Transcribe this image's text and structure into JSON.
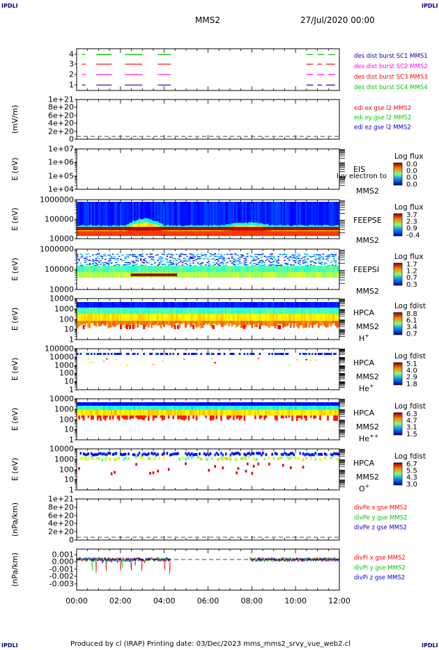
{
  "corners": {
    "tl": "IPDLI",
    "tr": "IPDLI",
    "bl": "IPDLI",
    "br": "IPDLI"
  },
  "header": {
    "spacecraft": "MMS2",
    "date": "27/Jul/2020 00:00"
  },
  "footer": {
    "text": "Produced by cl (IRAP)   Printing date: 03/Dec/2023   mms_mms2_srvy_vue_web2.cl"
  },
  "colors": {
    "c1": "#0000c8",
    "c2": "#ff0000",
    "c3": "#ff00ff",
    "c4": "#00c800",
    "axis": "#000000"
  },
  "time_axis": {
    "ticks": [
      "00:00",
      "02:00",
      "04:00",
      "06:00",
      "08:00",
      "10:00",
      "12:00"
    ],
    "range_hours": [
      0,
      12
    ]
  },
  "chart_data": [
    {
      "type": "line",
      "id": "p1",
      "title": "",
      "yticks": [
        "4",
        "3",
        "2",
        "1"
      ],
      "legend": [
        {
          "text": "des dist burst SC1 MMS1",
          "color": "#0000c8"
        },
        {
          "text": "des dist burst SC2 MMS2",
          "color": "#ff00ff"
        },
        {
          "text": "des dist burst SC3 MMS3",
          "color": "#ff0000"
        },
        {
          "text": "des dist burst SC4 MMS4",
          "color": "#00c800"
        }
      ],
      "series": [
        {
          "level": 4,
          "color": "#00c800",
          "intervals_h": [
            [
              0.25,
              0.4
            ],
            [
              0.9,
              1.6
            ],
            [
              2.2,
              3.0
            ],
            [
              3.7,
              4.3
            ],
            [
              10.5,
              10.8
            ],
            [
              11.0,
              11.3
            ],
            [
              11.5,
              11.8
            ]
          ]
        },
        {
          "level": 3,
          "color": "#ff0000",
          "intervals_h": [
            [
              0.25,
              0.4
            ],
            [
              0.9,
              1.6
            ],
            [
              2.2,
              3.0
            ],
            [
              3.7,
              4.3
            ],
            [
              10.5,
              10.8
            ],
            [
              11.0,
              11.2
            ],
            [
              11.4,
              11.8
            ]
          ]
        },
        {
          "level": 2,
          "color": "#ff00ff",
          "intervals_h": [
            [
              0.25,
              0.4
            ],
            [
              0.9,
              1.6
            ],
            [
              2.2,
              3.0
            ],
            [
              3.7,
              4.3
            ],
            [
              10.5,
              10.8
            ],
            [
              11.0,
              11.3
            ],
            [
              11.5,
              11.8
            ]
          ]
        },
        {
          "level": 1,
          "color": "#0000c8",
          "intervals_h": [
            [
              0.25,
              0.4
            ],
            [
              0.9,
              1.6
            ],
            [
              2.2,
              3.0
            ],
            [
              3.7,
              4.3
            ],
            [
              10.5,
              10.8
            ],
            [
              11.0,
              11.2
            ],
            [
              11.4,
              11.8
            ]
          ]
        }
      ]
    },
    {
      "type": "line",
      "id": "p2",
      "ylabel": "(mV/m)",
      "yticks": [
        "1e+21",
        "8e+20",
        "6e+20",
        "4e+20",
        "2e+20",
        "0"
      ],
      "legend": [
        {
          "text": "edi ex gse l2 MMS2",
          "color": "#ff0000"
        },
        {
          "text": "edi ey gse l2 MMS2",
          "color": "#00c800"
        },
        {
          "text": "edi ez gse l2 MMS2",
          "color": "#0000c8"
        }
      ],
      "zero_line": true
    },
    {
      "type": "heatmap",
      "id": "p3",
      "ylabel": "E (eV)",
      "yticks": [
        "1e+07",
        "1e+06",
        "1e+05",
        "1e+04"
      ],
      "label": "EIS",
      "label2": "MMS2",
      "overlay": "Ivy electron to",
      "cbar_title": "Log flux",
      "cbar_ticks": [
        "0.0",
        "0.0",
        "0.0",
        "0.0"
      ],
      "empty": true
    },
    {
      "type": "heatmap",
      "id": "p4",
      "ylabel": "E (eV)",
      "yticks": [
        "1000000",
        "100000",
        "10000"
      ],
      "label": "FEEPSE",
      "label2": "MMS2",
      "cbar_title": "Log flux",
      "cbar_ticks": [
        "3.7",
        "2.3",
        "0.9",
        "-0.4"
      ]
    },
    {
      "type": "heatmap",
      "id": "p5",
      "ylabel": "E (eV)",
      "yticks": [
        "1000000",
        "100000",
        "10000"
      ],
      "label": "FEEPSI",
      "label2": "MMS2",
      "cbar_title": "Log flux",
      "cbar_ticks": [
        "1.7",
        "1.2",
        "0.7",
        "0.3"
      ]
    },
    {
      "type": "heatmap",
      "id": "p6",
      "ylabel": "E (eV)",
      "yticks": [
        "10000",
        "1000",
        "100",
        "10",
        "1"
      ],
      "label": "HPCA",
      "label2": "MMS2",
      "species": "H",
      "sup": "+",
      "cbar_title": "Log fdist",
      "cbar_ticks": [
        "8.8",
        "6.1",
        "3.4",
        "0.7"
      ]
    },
    {
      "type": "heatmap",
      "id": "p7",
      "ylabel": "E (eV)",
      "yticks": [
        "100000",
        "10000",
        "1000",
        "100",
        "10",
        "1"
      ],
      "label": "HPCA",
      "label2": "MMS2",
      "species": "He",
      "sup": "+",
      "cbar_title": "Log fdist",
      "cbar_ticks": [
        "5.1",
        "4.0",
        "2.9",
        "1.8"
      ]
    },
    {
      "type": "heatmap",
      "id": "p8",
      "ylabel": "E (eV)",
      "yticks": [
        "10000",
        "1000",
        "100",
        "10",
        "1"
      ],
      "label": "HPCA",
      "label2": "MMS2",
      "species": "He",
      "sup": "++",
      "cbar_title": "Log fdist",
      "cbar_ticks": [
        "6.3",
        "4.7",
        "3.1",
        "1.5"
      ]
    },
    {
      "type": "heatmap",
      "id": "p9",
      "ylabel": "E (eV)",
      "yticks": [
        "10000",
        "1000",
        "100",
        "10",
        "1"
      ],
      "label": "HPCA",
      "label2": "MMS2",
      "species": "O",
      "sup": "+",
      "cbar_title": "Log fdist",
      "cbar_ticks": [
        "6.7",
        "5.5",
        "4.3",
        "3.0"
      ]
    },
    {
      "type": "line",
      "id": "p10",
      "ylabel": "(nPa/km)",
      "yticks": [
        "1e+21",
        "8e+20",
        "6e+20",
        "4e+20",
        "2e+20",
        "0"
      ],
      "legend": [
        {
          "text": "divPe x gse MMS2",
          "color": "#ff0000"
        },
        {
          "text": "divPe y gse MMS2",
          "color": "#00c800"
        },
        {
          "text": "divPe z gse MMS2",
          "color": "#0000c8"
        }
      ],
      "zero_line": true
    },
    {
      "type": "line",
      "id": "p11",
      "ylabel": "(nPa/km)",
      "yticks": [
        "0.001",
        "0.000",
        "-0.001",
        "-0.002",
        "-0.003"
      ],
      "legend": [
        {
          "text": "divPi x gse MMS2",
          "color": "#ff0000"
        },
        {
          "text": "divPi y gse MMS2",
          "color": "#00c800"
        },
        {
          "text": "divPi z gse MMS2",
          "color": "#0000c8"
        }
      ],
      "zero_line": true,
      "data_intervals_h": [
        [
          0.0,
          4.3
        ],
        [
          7.9,
          12.0
        ]
      ]
    }
  ]
}
